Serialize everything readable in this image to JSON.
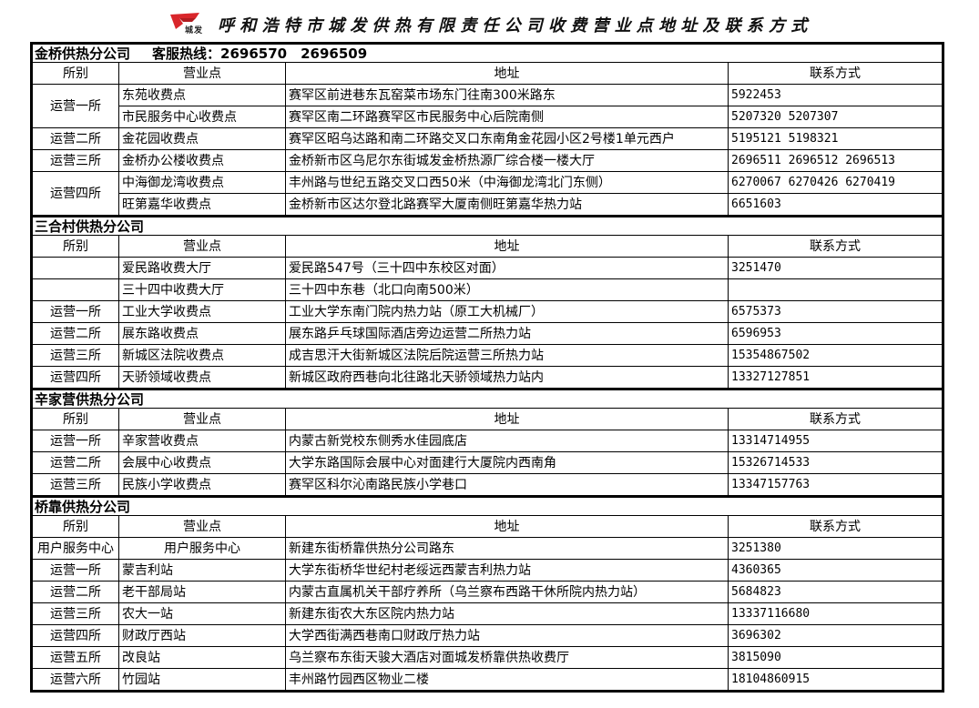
{
  "title": "呼和浩特市城发供热有限责任公司收费营业点地址及联系方式",
  "logo_text": "城发",
  "colors": {
    "logo_red": "#d9262b",
    "border": "#000000"
  },
  "columns": [
    "所别",
    "营业点",
    "地址",
    "联系方式"
  ],
  "sections": [
    {
      "name": "金桥供热分公司",
      "hotline": "客服热线：2696570　2696509",
      "groups": [
        {
          "dept": "运营一所",
          "stations": [
            {
              "name": "东苑收费点",
              "address": "赛罕区前进巷东瓦窑菜市场东门往南300米路东",
              "contact": "5922453"
            },
            {
              "name": "市民服务中心收费点",
              "address": "赛罕区南二环路赛罕区市民服务中心后院南侧",
              "contact": "5207320 5207307"
            }
          ]
        },
        {
          "dept": "运营二所",
          "stations": [
            {
              "name": "金花园收费点",
              "address": "赛罕区昭乌达路和南二环路交叉口东南角金花园小区2号楼1单元西户",
              "contact": "5195121 5198321"
            }
          ]
        },
        {
          "dept": "运营三所",
          "stations": [
            {
              "name": "金桥办公楼收费点",
              "address": "金桥新市区乌尼尔东街城发金桥热源厂综合楼一楼大厅",
              "contact": "2696511   2696512   2696513"
            }
          ]
        },
        {
          "dept": "运营四所",
          "stations": [
            {
              "name": "中海御龙湾收费点",
              "address": "丰州路与世纪五路交叉口西50米（中海御龙湾北门东侧）",
              "contact": "6270067   6270426   6270419"
            },
            {
              "name": "旺第嘉华收费点",
              "address": "金桥新市区达尔登北路赛罕大厦南侧旺第嘉华热力站",
              "contact": "6651603"
            }
          ]
        }
      ]
    },
    {
      "name": "三合村供热分公司",
      "groups": [
        {
          "dept": "",
          "stations": [
            {
              "name": "爱民路收费大厅",
              "address": "爱民路547号（三十四中东校区对面）",
              "contact": "3251470"
            }
          ]
        },
        {
          "dept": "",
          "stations": [
            {
              "name": "三十四中收费大厅",
              "address": "三十四中东巷（北口向南500米）",
              "contact": ""
            }
          ]
        },
        {
          "dept": "运营一所",
          "stations": [
            {
              "name": "工业大学收费点",
              "address": "工业大学东南门院内热力站（原工大机械厂）",
              "contact": "6575373"
            }
          ]
        },
        {
          "dept": "运营二所",
          "stations": [
            {
              "name": "展东路收费点",
              "address": "展东路乒乓球国际酒店旁边运营二所热力站",
              "contact": "6596953"
            }
          ]
        },
        {
          "dept": "运营三所",
          "stations": [
            {
              "name": "新城区法院收费点",
              "address": "成吉思汗大街新城区法院后院运营三所热力站",
              "contact": "15354867502"
            }
          ]
        },
        {
          "dept": "运营四所",
          "stations": [
            {
              "name": "天骄领域收费点",
              "address": "新城区政府西巷向北往路北天骄领域热力站内",
              "contact": "13327127851"
            }
          ]
        }
      ]
    },
    {
      "name": "辛家营供热分公司",
      "groups": [
        {
          "dept": "运营一所",
          "stations": [
            {
              "name": "辛家营收费点",
              "address": "内蒙古新党校东侧秀水佳园底店",
              "contact": "13314714955"
            }
          ]
        },
        {
          "dept": "运营二所",
          "stations": [
            {
              "name": "会展中心收费点",
              "address": "大学东路国际会展中心对面建行大厦院内西南角",
              "contact": "15326714533"
            }
          ]
        },
        {
          "dept": "运营三所",
          "stations": [
            {
              "name": "民族小学收费点",
              "address": "赛罕区科尔沁南路民族小学巷口",
              "contact": "13347157763"
            }
          ]
        }
      ]
    },
    {
      "name": "桥靠供热分公司",
      "groups": [
        {
          "dept": "用户服务中心",
          "stations": [
            {
              "name": "用户服务中心",
              "address": "新建东街桥靠供热分公司路东",
              "contact": "3251380",
              "centered": true
            }
          ]
        },
        {
          "dept": "运营一所",
          "stations": [
            {
              "name": "蒙吉利站",
              "address": "大学东街桥华世纪村老绥远西蒙吉利热力站",
              "contact": "4360365"
            }
          ]
        },
        {
          "dept": "运营二所",
          "stations": [
            {
              "name": "老干部局站",
              "address": "内蒙古直属机关干部疗养所（乌兰察布西路干休所院内热力站）",
              "contact": "5684823"
            }
          ]
        },
        {
          "dept": "运营三所",
          "stations": [
            {
              "name": "农大一站",
              "address": "新建东街农大东区院内热力站",
              "contact": "13337116680"
            }
          ]
        },
        {
          "dept": "运营四所",
          "stations": [
            {
              "name": "财政厅西站",
              "address": "大学西街满西巷南口财政厅热力站",
              "contact": "3696302"
            }
          ]
        },
        {
          "dept": "运营五所",
          "stations": [
            {
              "name": "改良站",
              "address": "乌兰察布东街天骏大酒店对面城发桥靠供热收费厅",
              "contact": "3815090"
            }
          ]
        },
        {
          "dept": "运营六所",
          "stations": [
            {
              "name": "竹园站",
              "address": "丰州路竹园西区物业二楼",
              "contact": "18104860915"
            }
          ]
        }
      ]
    }
  ]
}
